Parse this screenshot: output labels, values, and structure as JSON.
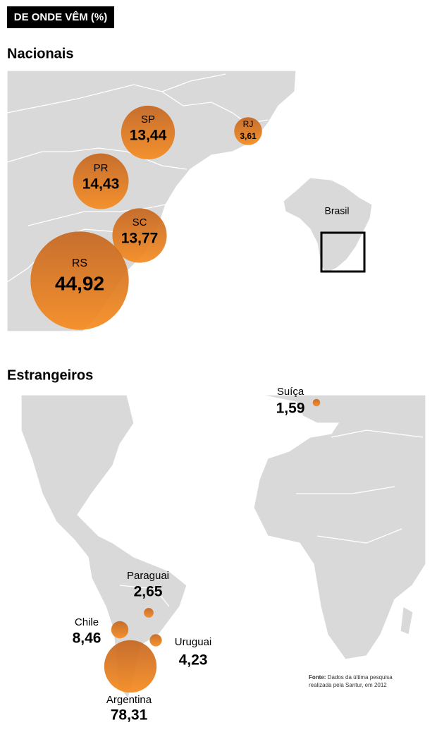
{
  "header": {
    "title": "DE ONDE VÊM (%)"
  },
  "nacionais": {
    "title": "Nacionais",
    "inset_label": "Brasil",
    "items": [
      {
        "label": "SP",
        "value": 13.44,
        "value_label": "13,44"
      },
      {
        "label": "RJ",
        "value": 3.61,
        "value_label": "3,61"
      },
      {
        "label": "PR",
        "value": 14.43,
        "value_label": "14,43"
      },
      {
        "label": "SC",
        "value": 13.77,
        "value_label": "13,77"
      },
      {
        "label": "RS",
        "value": 44.92,
        "value_label": "44,92"
      }
    ]
  },
  "estrangeiros": {
    "title": "Estrangeiros",
    "items": [
      {
        "label": "Suíça",
        "value": 1.59,
        "value_label": "1,59"
      },
      {
        "label": "Paraguai",
        "value": 2.65,
        "value_label": "2,65"
      },
      {
        "label": "Chile",
        "value": 8.46,
        "value_label": "8,46"
      },
      {
        "label": "Uruguai",
        "value": 4.23,
        "value_label": "4,23"
      },
      {
        "label": "Argentina",
        "value": 78.31,
        "value_label": "78,31"
      }
    ]
  },
  "source": {
    "label": "Fonte:",
    "text": "Dados da última pesquisa",
    "text2": "realizada pela Santur, em 2012"
  }
}
